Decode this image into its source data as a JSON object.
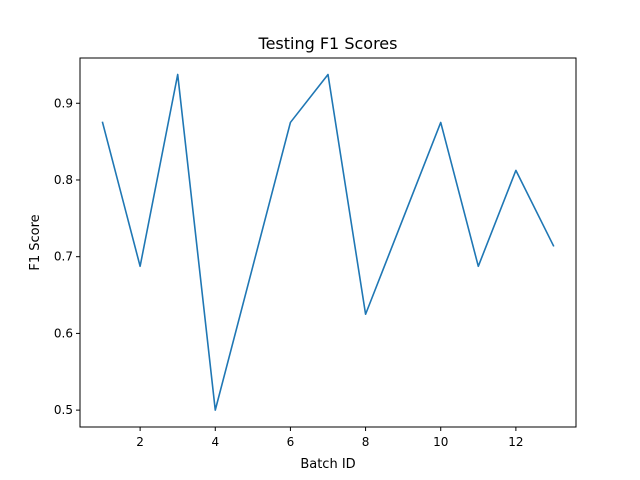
{
  "chart_data": {
    "type": "line",
    "title": "Testing F1 Scores",
    "xlabel": "Batch ID",
    "ylabel": "F1 Score",
    "x": [
      1,
      2,
      3,
      4,
      5,
      6,
      7,
      8,
      9,
      10,
      11,
      12,
      13
    ],
    "series": [
      {
        "values": [
          0.875,
          0.6875,
          0.9375,
          0.5,
          0.6875,
          0.875,
          0.9375,
          0.625,
          0.75,
          0.875,
          0.6875,
          0.8125,
          0.7143
        ],
        "color": "#1f77b4"
      }
    ],
    "xlim": [
      0.4,
      13.6
    ],
    "ylim": [
      0.478,
      0.959
    ],
    "xticks": [
      2,
      4,
      6,
      8,
      10,
      12
    ],
    "xtick_labels": [
      "2",
      "4",
      "6",
      "8",
      "10",
      "12"
    ],
    "yticks": [
      0.5,
      0.6,
      0.7,
      0.8,
      0.9
    ],
    "ytick_labels": [
      "0.5",
      "0.6",
      "0.7",
      "0.8",
      "0.9"
    ],
    "grid": false,
    "legend": "none"
  }
}
